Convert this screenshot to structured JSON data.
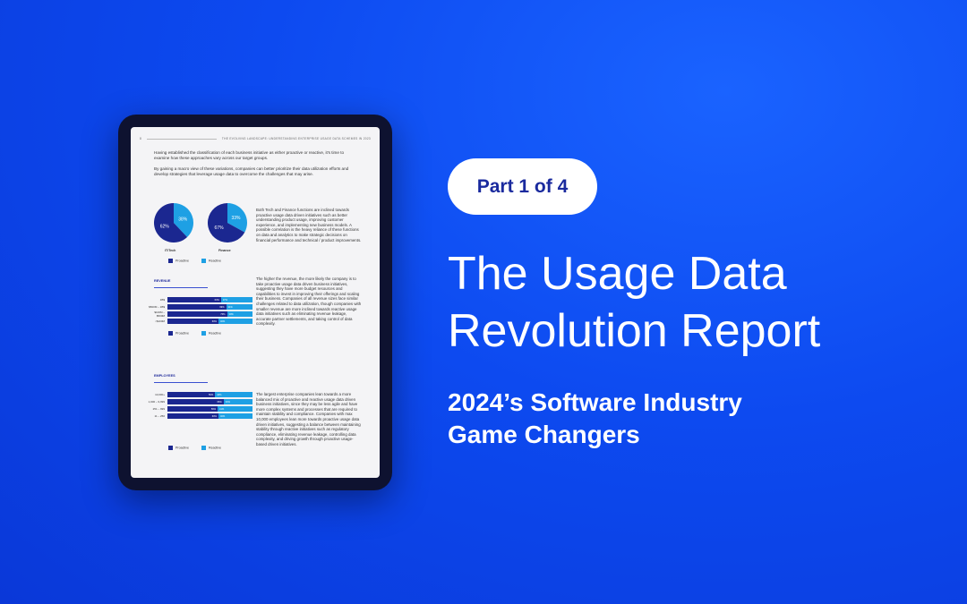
{
  "badge": "Part 1 of 4",
  "title_line1": "The Usage Data",
  "title_line2": "Revolution Report",
  "subtitle_line1": "2024’s Software Industry",
  "subtitle_line2": "Game Changers",
  "doc": {
    "page_num": "8",
    "header": "THE EVOLVING LANDSCAPE: UNDERSTANDING ENTERPRISE USAGE DATA SCHEMES IN 2023",
    "intro1": "Having established the classification of each business initiative as either proactive or reactive, it's time to examine how these approaches vary across our target groups.",
    "intro2": "By gaining a macro view of these variations, companies can better prioritize their data utilization efforts and develop strategies that leverage usage data to overcome the challenges that may arise.",
    "pie1": {
      "label": "IT/Tech",
      "pro": 62,
      "rea": 38,
      "pro_text": "62%",
      "rea_text": "38%"
    },
    "pie2": {
      "label": "Finance",
      "pro": 67,
      "rea": 33,
      "pro_text": "67%",
      "rea_text": "33%"
    },
    "legend_pro": "Proactive",
    "legend_rea": "Reactive",
    "text_functions": "Both Tech and Finance functions are inclined towards proactive usage data driven initiatives such as better understanding product usage, improving customer experience, and implementing new business models. A possible correlation is the heavy reliance of these functions on data and analytics to make strategic decisions on financial performance and technical / product improvements.",
    "revenue_title": "REVENUE",
    "revenue_rows": [
      {
        "label": "1B$",
        "pro": 63,
        "pro_text": "63%",
        "rea_text": "37%"
      },
      {
        "label": "$500M – 1B$",
        "pro": 69,
        "pro_text": "69%",
        "rea_text": "31%"
      },
      {
        "label": "$100M – $500M",
        "pro": 70,
        "pro_text": "70%",
        "rea_text": "30%"
      },
      {
        "label": "<$100M",
        "pro": 60,
        "pro_text": "60%",
        "rea_text": "40%"
      }
    ],
    "text_revenue": "The higher the revenue, the more likely the company is to take proactive usage data driven business initiatives, suggesting they have more budget resources and capabilities to invest in improving their offerings and scaling their business. Companies of all revenue sizes face similar challenges related to data utilization, though companies with smaller revenue are more inclined towards reactive usage data initiatives such as eliminating revenue leakage, accurate partner settlements, and taking control of data complexity.",
    "employees_title": "EMPLOYEES",
    "employee_rows": [
      {
        "label": "10,000+",
        "pro": 56,
        "pro_text": "56%",
        "rea_text": "44%"
      },
      {
        "label": "1,000 – 9,999",
        "pro": 66,
        "pro_text": "66%",
        "rea_text": "34%"
      },
      {
        "label": "251 – 999",
        "pro": 59,
        "pro_text": "59%",
        "rea_text": "41%"
      },
      {
        "label": "11 – 250",
        "pro": 60,
        "pro_text": "60%",
        "rea_text": "40%"
      }
    ],
    "text_employees": "The largest enterprise companies lean towards a more balanced mix of proactive and reactive usage data driven business initiatives, since they may be less agile and have more complex systems and processes that are required to maintain stability and compliance. Companies with max 10,000 employees lean more towards proactive usage data driven initiatives, suggesting a balance between maintaining stability through reactive initiatives such as regulatory compliance, eliminating revenue leakage, controlling data complexity, and driving growth through proactive usage-based driven initiatives."
  },
  "colors": {
    "proactive": "#1b2790",
    "reactive": "#1ea0e4",
    "background": "#0d4af0"
  }
}
